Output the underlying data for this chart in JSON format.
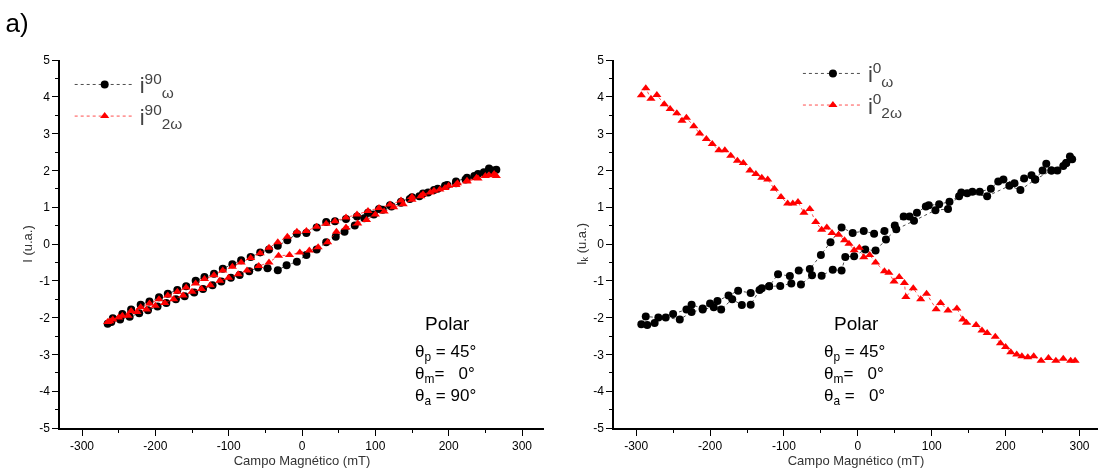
{
  "chart_data": [
    {
      "type": "line",
      "title": "a)",
      "xlabel": "Campo Magnético (mT)",
      "ylabel": "I (u.a.)",
      "xlim": [
        -330,
        330
      ],
      "ylim": [
        -5,
        5
      ],
      "xticks": [
        -300,
        -200,
        -100,
        0,
        100,
        200,
        300
      ],
      "yticks": [
        -5,
        -4,
        -3,
        -2,
        -1,
        0,
        1,
        2,
        3,
        4,
        5
      ],
      "grid": false,
      "legend": "top left",
      "line_style": "dotted",
      "annotations": [
        "Polar",
        "θ$_{p}$ = 45°",
        "θ$_{m}$=   0°",
        "θ$_{a}$ = 90°"
      ],
      "series": [
        {
          "name": "i$^{90}$$_{ω}$",
          "color": "#000000",
          "marker": "circle",
          "x": [
            265,
            255,
            240,
            225,
            210,
            195,
            180,
            165,
            150,
            135,
            120,
            105,
            90,
            75,
            60,
            45,
            33,
            20,
            6,
            -7,
            -20,
            -33,
            -45,
            -57,
            -70,
            -83,
            -95,
            -108,
            -120,
            -133,
            -145,
            -158,
            -170,
            -183,
            -195,
            -208,
            -220,
            -233,
            -245,
            -258,
            -265,
            -260,
            -248,
            -235,
            -222,
            -210,
            -197,
            -185,
            -172,
            -160,
            -147,
            -135,
            -122,
            -110,
            -97,
            -85,
            -72,
            -60,
            -47,
            -33,
            -21,
            -7,
            6,
            20,
            33,
            46,
            58,
            72,
            85,
            98,
            110,
            122,
            135,
            147,
            160,
            172,
            185,
            198,
            210,
            223,
            235,
            248,
            260
          ],
          "values": [
            2.02,
            2.05,
            1.9,
            1.8,
            1.7,
            1.58,
            1.47,
            1.37,
            1.27,
            1.15,
            1.05,
            0.95,
            0.85,
            0.75,
            0.68,
            0.62,
            0.6,
            0.45,
            0.3,
            0.28,
            0.1,
            -0.05,
            -0.15,
            -0.23,
            -0.35,
            -0.44,
            -0.55,
            -0.67,
            -0.81,
            -0.9,
            -1.0,
            -1.15,
            -1.25,
            -1.35,
            -1.45,
            -1.56,
            -1.65,
            -1.78,
            -1.9,
            -2.02,
            -2.17,
            -2.12,
            -2.05,
            -1.98,
            -1.88,
            -1.8,
            -1.7,
            -1.6,
            -1.5,
            -1.42,
            -1.32,
            -1.22,
            -1.12,
            -1.02,
            -0.92,
            -0.84,
            -0.74,
            -0.64,
            -0.66,
            -0.71,
            -0.58,
            -0.48,
            -0.3,
            -0.15,
            0.05,
            0.2,
            0.33,
            0.5,
            0.7,
            0.8,
            0.93,
            1.02,
            1.12,
            1.22,
            1.3,
            1.4,
            1.5,
            1.6,
            1.65,
            1.75,
            1.85,
            1.95,
            2.0
          ]
        },
        {
          "name": "i$^{90}$$_{2ω}$",
          "color": "#ff0000",
          "marker": "triangle",
          "x": [
            265,
            255,
            240,
            225,
            210,
            195,
            180,
            165,
            150,
            135,
            120,
            105,
            90,
            75,
            60,
            45,
            33,
            20,
            6,
            -7,
            -20,
            -33,
            -45,
            -57,
            -70,
            -83,
            -95,
            -108,
            -120,
            -133,
            -145,
            -158,
            -170,
            -183,
            -195,
            -208,
            -220,
            -233,
            -245,
            -258,
            -265,
            -262,
            -250,
            -237,
            -225,
            -212,
            -200,
            -187,
            -175,
            -162,
            -150,
            -137,
            -125,
            -112,
            -100,
            -87,
            -75,
            -59,
            -45,
            -32,
            -17,
            -3,
            10,
            22,
            35,
            47,
            60,
            76,
            88,
            100,
            112,
            125,
            138,
            150,
            162,
            175,
            188,
            200,
            212,
            225,
            238,
            250,
            262
          ],
          "values": [
            1.85,
            1.87,
            1.78,
            1.7,
            1.6,
            1.52,
            1.45,
            1.35,
            1.28,
            1.18,
            1.07,
            0.98,
            0.9,
            0.8,
            0.72,
            0.62,
            0.55,
            0.47,
            0.35,
            0.33,
            0.2,
            0.05,
            -0.1,
            -0.25,
            -0.38,
            -0.5,
            -0.62,
            -0.72,
            -0.85,
            -0.95,
            -1.07,
            -1.18,
            -1.3,
            -1.4,
            -1.5,
            -1.62,
            -1.72,
            -1.82,
            -1.95,
            -2.05,
            -2.12,
            -2.1,
            -2.0,
            -1.95,
            -1.85,
            -1.78,
            -1.68,
            -1.6,
            -1.5,
            -1.4,
            -1.3,
            -1.22,
            -1.12,
            -1.0,
            -0.92,
            -0.82,
            -0.72,
            -0.6,
            -0.5,
            -0.32,
            -0.3,
            -0.23,
            -0.18,
            -0.09,
            0.05,
            0.33,
            0.45,
            0.56,
            0.65,
            0.8,
            0.88,
            1.0,
            1.08,
            1.2,
            1.3,
            1.4,
            1.48,
            1.58,
            1.65,
            1.72,
            1.8,
            1.85,
            1.9
          ]
        }
      ]
    },
    {
      "type": "line",
      "xlabel": "Campo Magnético (mT)",
      "ylabel": "I$_{k}$ (u.a.)",
      "xlim": [
        -330,
        325
      ],
      "ylim": [
        -5,
        5
      ],
      "xticks": [
        -300,
        -200,
        -100,
        0,
        100,
        200,
        300
      ],
      "yticks": [
        -5,
        -4,
        -3,
        -2,
        -1,
        0,
        1,
        2,
        3,
        4,
        5
      ],
      "grid": false,
      "legend": "top",
      "line_style": "dotted",
      "annotations": [
        "Polar",
        "θ$_{p}$ = 45°",
        "θ$_{m}$=   0°",
        "θ$_{a}$ =   0°"
      ],
      "series": [
        {
          "name": "i$^{0}$$_{ω}$",
          "color": "#000000",
          "marker": "circle",
          "x": [
            290,
            287,
            282,
            278,
            270,
            262,
            255,
            250,
            240,
            235,
            225,
            212,
            197,
            190,
            180,
            165,
            155,
            148,
            137,
            124,
            110,
            96,
            92,
            80,
            70,
            62,
            50,
            36,
            22,
            8,
            -7,
            -22,
            -37,
            -50,
            -65,
            -80,
            -92,
            -108,
            -120,
            -130,
            -145,
            -162,
            -175,
            -190,
            -200,
            -210,
            -225,
            -232,
            -250,
            -270,
            -287,
            -293,
            -285,
            -275,
            -260,
            -241,
            -225,
            -210,
            -195,
            -185,
            -170,
            -157,
            -145,
            -133,
            -120,
            -105,
            -90,
            -77,
            -62,
            -49,
            -34,
            -22,
            -17,
            -5,
            10,
            24,
            38,
            52,
            76,
            105,
            122,
            140,
            175,
            205,
            220,
            240,
            262,
            282
          ],
          "values": [
            2.3,
            2.38,
            2.2,
            2.12,
            2.0,
            2.0,
            2.18,
            2.0,
            1.75,
            1.87,
            1.78,
            1.65,
            1.75,
            1.7,
            1.5,
            1.42,
            1.42,
            1.38,
            1.3,
            1.15,
            1.08,
            1.05,
            1.02,
            0.85,
            0.75,
            0.75,
            0.5,
            0.35,
            0.28,
            0.35,
            0.3,
            0.45,
            0.05,
            -0.3,
            -0.68,
            -0.72,
            -0.87,
            -0.82,
            -1.15,
            -1.2,
            -1.33,
            -1.27,
            -1.4,
            -1.55,
            -1.62,
            -1.75,
            -1.65,
            -1.78,
            -1.9,
            -2.0,
            -1.97,
            -2.18,
            -2.2,
            -2.15,
            -2.0,
            -2.05,
            -1.85,
            -1.78,
            -1.72,
            -1.78,
            -1.5,
            -1.66,
            -1.65,
            -1.25,
            -1.15,
            -1.14,
            -1.07,
            -1.1,
            -0.85,
            -0.86,
            -0.7,
            -0.72,
            -0.35,
            -0.33,
            -0.15,
            -0.18,
            0.12,
            0.4,
            0.63,
            0.92,
            0.95,
            1.4,
            1.3,
            1.58,
            1.47,
            1.75,
            2.0,
            2.2
          ]
        },
        {
          "name": "i$^{0}$$_{2ω}$",
          "color": "#ff0000",
          "marker": "triangle",
          "x": [
            -293,
            -287,
            -280,
            -272,
            -262,
            -254,
            -245,
            -238,
            -232,
            -222,
            -214,
            -205,
            -197,
            -188,
            -180,
            -172,
            -163,
            -155,
            -146,
            -138,
            -130,
            -122,
            -113,
            -104,
            -95,
            -88,
            -81,
            -73,
            -65,
            -57,
            -49,
            -42,
            -35,
            -26,
            -18,
            -12,
            -5,
            2,
            8,
            16,
            24,
            36,
            42,
            49,
            56,
            63,
            65,
            75,
            85,
            93,
            106,
            112,
            122,
            134,
            142,
            147,
            160,
            168,
            175,
            186,
            193,
            200,
            207,
            215,
            222,
            230,
            238,
            248,
            258,
            268,
            278,
            288,
            294
          ],
          "values": [
            4.04,
            4.23,
            3.95,
            4.05,
            3.8,
            3.67,
            3.55,
            3.35,
            3.43,
            3.2,
            3.0,
            2.85,
            2.72,
            2.55,
            2.55,
            2.4,
            2.26,
            2.2,
            2.0,
            1.9,
            1.8,
            1.75,
            1.5,
            1.28,
            1.1,
            1.1,
            1.14,
            0.85,
            0.95,
            0.6,
            0.39,
            0.45,
            0.3,
            0.25,
            0.1,
            0.01,
            -0.17,
            -0.1,
            -0.36,
            -0.3,
            -0.5,
            -0.74,
            -0.78,
            -1.02,
            -0.9,
            -1.06,
            -1.44,
            -1.2,
            -1.5,
            -1.35,
            -1.77,
            -1.6,
            -1.81,
            -1.75,
            -2.05,
            -2.14,
            -2.2,
            -2.35,
            -2.42,
            -2.52,
            -2.7,
            -2.8,
            -2.94,
            -3.0,
            -3.05,
            -3.08,
            -3.05,
            -3.17,
            -3.1,
            -3.17,
            -3.12,
            -3.17,
            -3.17
          ]
        }
      ]
    }
  ]
}
